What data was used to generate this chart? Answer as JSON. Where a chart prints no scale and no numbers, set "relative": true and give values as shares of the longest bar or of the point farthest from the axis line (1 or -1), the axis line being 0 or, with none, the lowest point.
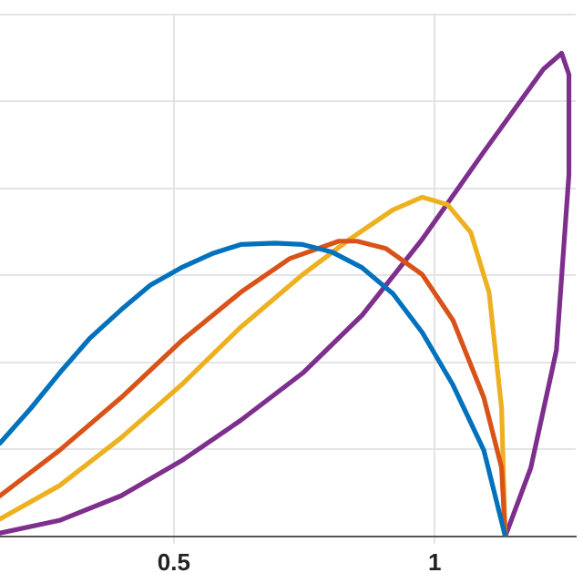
{
  "chart_data": {
    "type": "line",
    "relative": true,
    "xlim": [
      0.167,
      1.27
    ],
    "xticks": [
      0.5,
      1
    ],
    "grid": true,
    "legend": false,
    "marker": "none",
    "line_style": "solid",
    "series": [
      {
        "color": "#0072bd",
        "x": [
          0.167,
          0.226,
          0.281,
          0.34,
          0.399,
          0.455,
          0.514,
          0.573,
          0.628,
          0.694,
          0.747,
          0.802,
          0.861,
          0.92,
          0.976,
          1.035,
          1.094,
          1.135
        ],
        "values": [
          0.193,
          0.265,
          0.338,
          0.411,
          0.469,
          0.52,
          0.556,
          0.585,
          0.604,
          0.607,
          0.604,
          0.589,
          0.556,
          0.502,
          0.422,
          0.313,
          0.178,
          0
        ]
      },
      {
        "color": "#d95319",
        "x": [
          0.167,
          0.281,
          0.399,
          0.514,
          0.628,
          0.722,
          0.816,
          0.851,
          0.906,
          0.976,
          1.035,
          1.094,
          1.128,
          1.135
        ],
        "values": [
          0.084,
          0.178,
          0.287,
          0.404,
          0.505,
          0.575,
          0.611,
          0.611,
          0.596,
          0.542,
          0.447,
          0.287,
          0.142,
          0
        ]
      },
      {
        "color": "#edb120",
        "x": [
          0.167,
          0.281,
          0.399,
          0.514,
          0.628,
          0.747,
          0.837,
          0.92,
          0.976,
          1.024,
          1.069,
          1.104,
          1.128,
          1.135
        ],
        "values": [
          0.036,
          0.105,
          0.204,
          0.313,
          0.433,
          0.542,
          0.615,
          0.676,
          0.702,
          0.687,
          0.629,
          0.505,
          0.265,
          0
        ]
      },
      {
        "color": "#7e2f8e",
        "x": [
          0.167,
          0.281,
          0.399,
          0.514,
          0.628,
          0.747,
          0.861,
          0.976,
          1.094,
          1.208,
          1.243,
          1.257,
          1.257,
          1.233,
          1.184,
          1.135
        ],
        "values": [
          0.007,
          0.033,
          0.084,
          0.156,
          0.24,
          0.338,
          0.458,
          0.615,
          0.796,
          0.967,
          1,
          0.956,
          0.749,
          0.385,
          0.142,
          0
        ]
      }
    ]
  }
}
